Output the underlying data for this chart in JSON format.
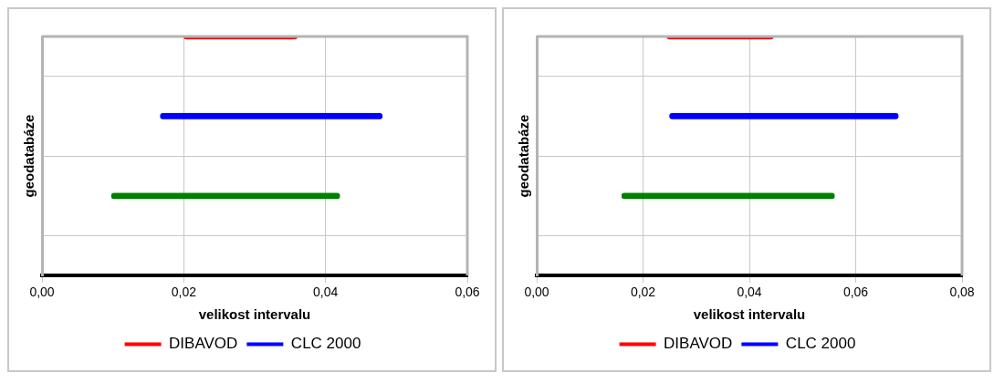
{
  "chart_data": [
    {
      "type": "bar",
      "orientation": "horizontal",
      "xlabel": "velikost intervalu",
      "ylabel": "geodatabáze",
      "categories": [
        null,
        null,
        null,
        null
      ],
      "series": [
        {
          "name": "DIBAVOD",
          "color": "#ff0000",
          "base": [
            0.02,
            null,
            null,
            null
          ],
          "values": [
            0.016,
            null,
            null,
            null
          ]
        },
        {
          "name": "CLC 2000",
          "color": "#0000ff",
          "base": [
            null,
            0.0167,
            null,
            null
          ],
          "values": [
            null,
            0.0313,
            null,
            null
          ]
        },
        {
          "color": "#008000",
          "base": [
            null,
            null,
            0.0098,
            null
          ],
          "values": [
            null,
            null,
            0.0322,
            null
          ]
        }
      ],
      "xlim": [
        0,
        0.06
      ],
      "xticks": [
        {
          "value": 0,
          "label": "0,00"
        },
        {
          "value": 0.02,
          "label": "0,02"
        },
        {
          "value": 0.04,
          "label": "0,04"
        },
        {
          "value": 0.06,
          "label": "0,06"
        }
      ],
      "tick_labels": "x",
      "grid": true,
      "legend": "bottom"
    },
    {
      "type": "bar",
      "orientation": "horizontal",
      "xlabel": "velikost intervalu",
      "ylabel": "geodatabáze",
      "categories": [
        null,
        null,
        null,
        null
      ],
      "series": [
        {
          "name": "DIBAVOD",
          "color": "#ff0000",
          "base": [
            0.0245,
            null,
            null,
            null
          ],
          "values": [
            0.02,
            null,
            null,
            null
          ]
        },
        {
          "name": "CLC 2000",
          "color": "#0000ff",
          "base": [
            null,
            0.025,
            null,
            null
          ],
          "values": [
            null,
            0.043,
            null,
            null
          ]
        },
        {
          "color": "#008000",
          "base": [
            null,
            null,
            0.016,
            null
          ],
          "values": [
            null,
            null,
            0.04,
            null
          ]
        }
      ],
      "xlim": [
        0,
        0.08
      ],
      "xticks": [
        {
          "value": 0,
          "label": "0,00"
        },
        {
          "value": 0.02,
          "label": "0,02"
        },
        {
          "value": 0.04,
          "label": "0,04"
        },
        {
          "value": 0.06,
          "label": "0,06"
        },
        {
          "value": 0.08,
          "label": "0,08"
        }
      ],
      "tick_labels": "x",
      "grid": true,
      "legend": "bottom"
    }
  ]
}
